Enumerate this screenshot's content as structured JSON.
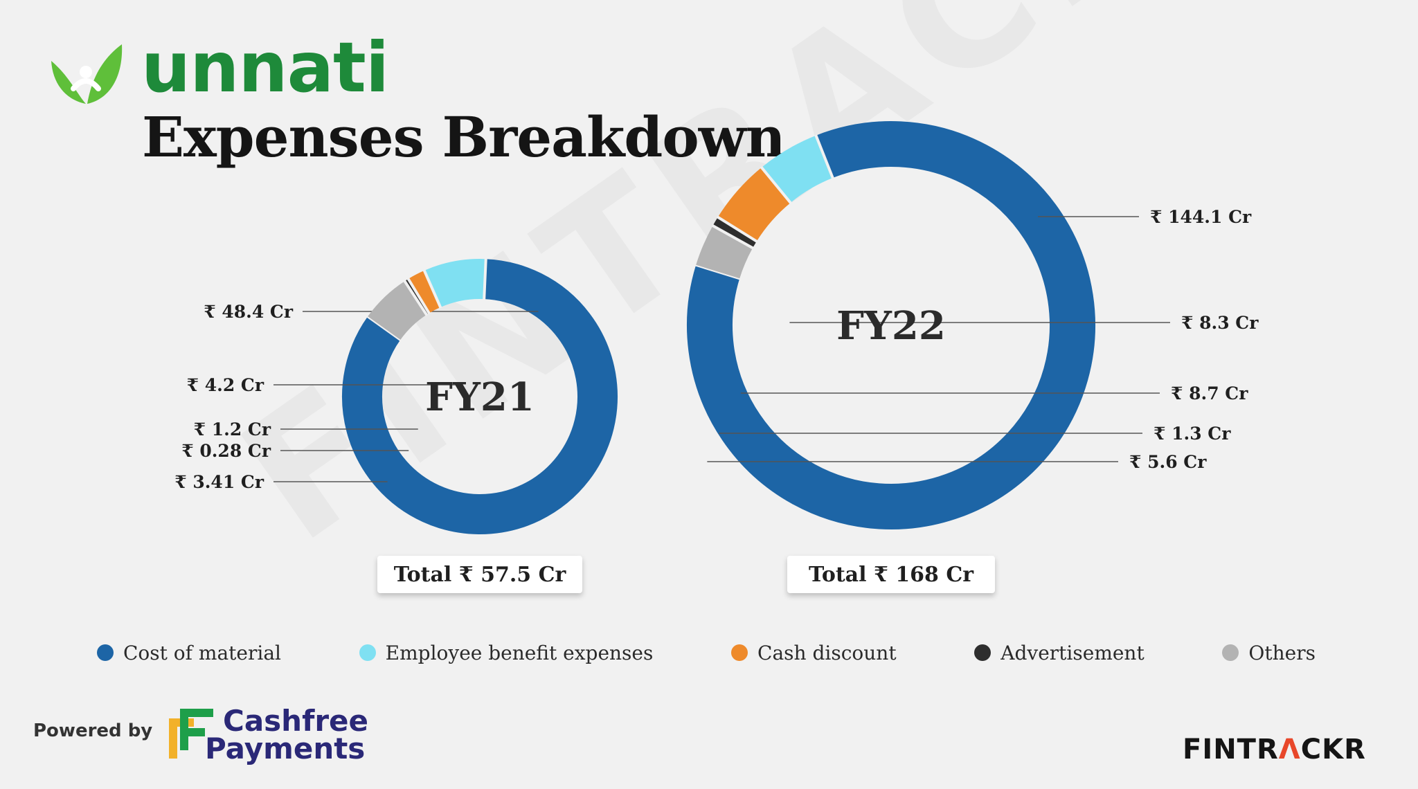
{
  "header": {
    "brand": "unnati",
    "title": "Expenses Breakdown"
  },
  "watermark": "FINTRACKR",
  "colors": {
    "cost_of_material": "#1d65a6",
    "employee_benefit": "#7fe0f2",
    "cash_discount": "#ee8a2b",
    "advertisement": "#2e2e2e",
    "others": "#b3b3b3",
    "brand_green": "#1e8a3a"
  },
  "chart_data": [
    {
      "type": "pie",
      "variant": "donut",
      "center_label": "FY21",
      "total_label": "Total ₹ 57.5 Cr",
      "slices": [
        {
          "name": "Cost of material",
          "value": 48.4,
          "label": "₹ 48.4 Cr",
          "color": "#1d65a6"
        },
        {
          "name": "Employee benefit expenses",
          "value": 4.2,
          "label": "₹ 4.2 Cr",
          "color": "#7fe0f2"
        },
        {
          "name": "Cash discount",
          "value": 1.2,
          "label": "₹ 1.2 Cr",
          "color": "#ee8a2b"
        },
        {
          "name": "Advertisement",
          "value": 0.28,
          "label": "₹ 0.28 Cr",
          "color": "#2e2e2e"
        },
        {
          "name": "Others",
          "value": 3.41,
          "label": "₹ 3.41 Cr",
          "color": "#b3b3b3"
        }
      ]
    },
    {
      "type": "pie",
      "variant": "donut",
      "center_label": "FY22",
      "total_label": "Total ₹ 168 Cr",
      "slices": [
        {
          "name": "Cost of material",
          "value": 144.1,
          "label": "₹ 144.1 Cr",
          "color": "#1d65a6"
        },
        {
          "name": "Employee benefit expenses",
          "value": 8.3,
          "label": "₹ 8.3 Cr",
          "color": "#7fe0f2"
        },
        {
          "name": "Cash discount",
          "value": 8.7,
          "label": "₹ 8.7 Cr",
          "color": "#ee8a2b"
        },
        {
          "name": "Advertisement",
          "value": 1.3,
          "label": "₹ 1.3 Cr",
          "color": "#2e2e2e"
        },
        {
          "name": "Others",
          "value": 5.6,
          "label": "₹ 5.6 Cr",
          "color": "#b3b3b3"
        }
      ]
    }
  ],
  "legend": [
    {
      "label": "Cost of material",
      "color": "#1d65a6"
    },
    {
      "label": "Employee benefit expenses",
      "color": "#7fe0f2"
    },
    {
      "label": "Cash discount",
      "color": "#ee8a2b"
    },
    {
      "label": "Advertisement",
      "color": "#2e2e2e"
    },
    {
      "label": "Others",
      "color": "#b3b3b3"
    }
  ],
  "footer": {
    "powered_by": "Powered by",
    "partner_line1": "Cashfree",
    "partner_line2": "Payments",
    "credit_part1": "FINTR",
    "credit_accent": "Λ",
    "credit_part2": "CKR"
  },
  "icons": {
    "brand_logo": "leaf-person-icon",
    "partner_logo": "cashfree-logo-icon"
  }
}
